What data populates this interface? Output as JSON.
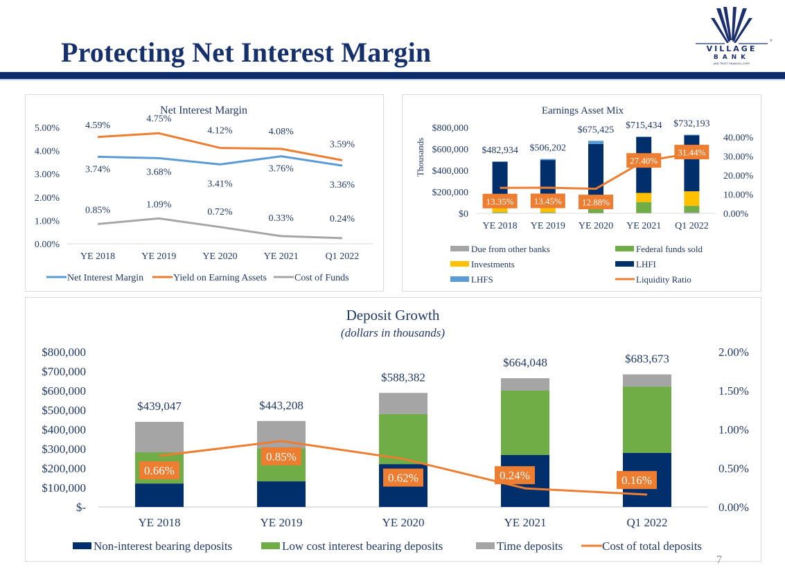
{
  "header": {
    "title": "Protecting Net Interest Margin",
    "logo": {
      "name": "VILLAGE",
      "sub": "BANK",
      "tagline": "AND TRUST FINANCIAL CORP.",
      "registered": "®"
    }
  },
  "page_number": "7",
  "colors": {
    "navy": "#002f6c",
    "blue_line": "#5b9bd5",
    "orange": "#ed7d31",
    "gray": "#a5a5a5",
    "green": "#70ad47",
    "yellow": "#ffc000",
    "title_navy": "#16306b"
  },
  "chart_data": [
    {
      "id": "nim",
      "type": "line",
      "title": "Net Interest Margin",
      "categories": [
        "YE 2018",
        "YE 2019",
        "YE 2020",
        "YE 2021",
        "Q1 2022"
      ],
      "ylim": [
        0,
        5
      ],
      "yticks": [
        "0.00%",
        "1.00%",
        "2.00%",
        "3.00%",
        "4.00%",
        "5.00%"
      ],
      "legend_position": "bottom",
      "series": [
        {
          "name": "Net Interest Margin",
          "color": "#5b9bd5",
          "values": [
            3.74,
            3.68,
            3.41,
            3.76,
            3.36
          ],
          "labels": [
            "3.74%",
            "3.68%",
            "3.41%",
            "3.76%",
            "3.36%"
          ]
        },
        {
          "name": "Yield on Earning Assets",
          "color": "#ed7d31",
          "values": [
            4.59,
            4.75,
            4.12,
            4.08,
            3.59
          ],
          "labels": [
            "4.59%",
            "4.75%",
            "4.12%",
            "4.08%",
            "3.59%"
          ]
        },
        {
          "name": "Cost of Funds",
          "color": "#a5a5a5",
          "values": [
            0.85,
            1.09,
            0.72,
            0.33,
            0.24
          ],
          "labels": [
            "0.85%",
            "1.09%",
            "0.72%",
            "0.33%",
            "0.24%"
          ]
        }
      ]
    },
    {
      "id": "eam",
      "type": "bar",
      "stacked": true,
      "title": "Earnings Asset Mix",
      "ylabel": "Thousands",
      "categories": [
        "YE 2018",
        "YE 2019",
        "YE 2020",
        "YE 2021",
        "Q1 2022"
      ],
      "ylim": [
        0,
        800000
      ],
      "yticks": [
        "$0",
        "$200,000",
        "$400,000",
        "$600,000",
        "$800,000"
      ],
      "y2lim": [
        0,
        40
      ],
      "y2ticks": [
        "0.00%",
        "10.00%",
        "20.00%",
        "30.00%",
        "40.00%"
      ],
      "totals": [
        "$482,934",
        "$506,202",
        "$675,425",
        "$715,434",
        "$732,193"
      ],
      "legend_position": "bottom",
      "series": [
        {
          "name": "Due from other banks",
          "color": "#a5a5a5",
          "values": [
            5000,
            6000,
            4000,
            5000,
            10000
          ]
        },
        {
          "name": "Federal funds sold",
          "color": "#70ad47",
          "values": [
            6000,
            4000,
            35000,
            100000,
            60000
          ]
        },
        {
          "name": "Investments",
          "color": "#ffc000",
          "values": [
            55000,
            55000,
            10000,
            85000,
            135000
          ]
        },
        {
          "name": "LHFI",
          "color": "#002f6c",
          "values": [
            413934,
            431202,
            596425,
            520434,
            522193
          ]
        },
        {
          "name": "LHFS",
          "color": "#5b9bd5",
          "values": [
            3000,
            10000,
            30000,
            5000,
            5000
          ]
        }
      ],
      "line": {
        "name": "Liquidity Ratio",
        "color": "#ed7d31",
        "values": [
          13.35,
          13.45,
          12.88,
          27.4,
          31.44
        ],
        "labels": [
          "13.35%",
          "13.45%",
          "12.88%",
          "27.40%",
          "31.44%"
        ]
      }
    },
    {
      "id": "dep",
      "type": "bar",
      "stacked": true,
      "title": "Deposit Growth",
      "subtitle": "(dollars in thousands)",
      "categories": [
        "YE 2018",
        "YE 2019",
        "YE 2020",
        "YE 2021",
        "Q1 2022"
      ],
      "ylim": [
        0,
        800000
      ],
      "yticks": [
        "$-",
        "$100,000",
        "$200,000",
        "$300,000",
        "$400,000",
        "$500,000",
        "$600,000",
        "$700,000",
        "$800,000"
      ],
      "y2lim": [
        0,
        2
      ],
      "y2ticks": [
        "0.00%",
        "0.50%",
        "1.00%",
        "1.50%",
        "2.00%"
      ],
      "totals": [
        "$439,047",
        "$443,208",
        "$588,382",
        "$664,048",
        "$683,673"
      ],
      "legend_position": "bottom",
      "series": [
        {
          "name": "Non-interest bearing deposits",
          "color": "#002f6c",
          "values": [
            121000,
            132000,
            221000,
            268000,
            279000
          ]
        },
        {
          "name": "Low cost interest bearing deposits",
          "color": "#70ad47",
          "values": [
            161000,
            171000,
            258000,
            332000,
            342000
          ]
        },
        {
          "name": "Time deposits",
          "color": "#a5a5a5",
          "values": [
            157047,
            140208,
            109382,
            64048,
            62673
          ]
        }
      ],
      "line": {
        "name": "Cost of total deposits",
        "color": "#ed7d31",
        "values": [
          0.66,
          0.85,
          0.62,
          0.24,
          0.16
        ],
        "labels": [
          "0.66%",
          "0.85%",
          "0.62%",
          "0.24%",
          "0.16%"
        ]
      }
    }
  ]
}
